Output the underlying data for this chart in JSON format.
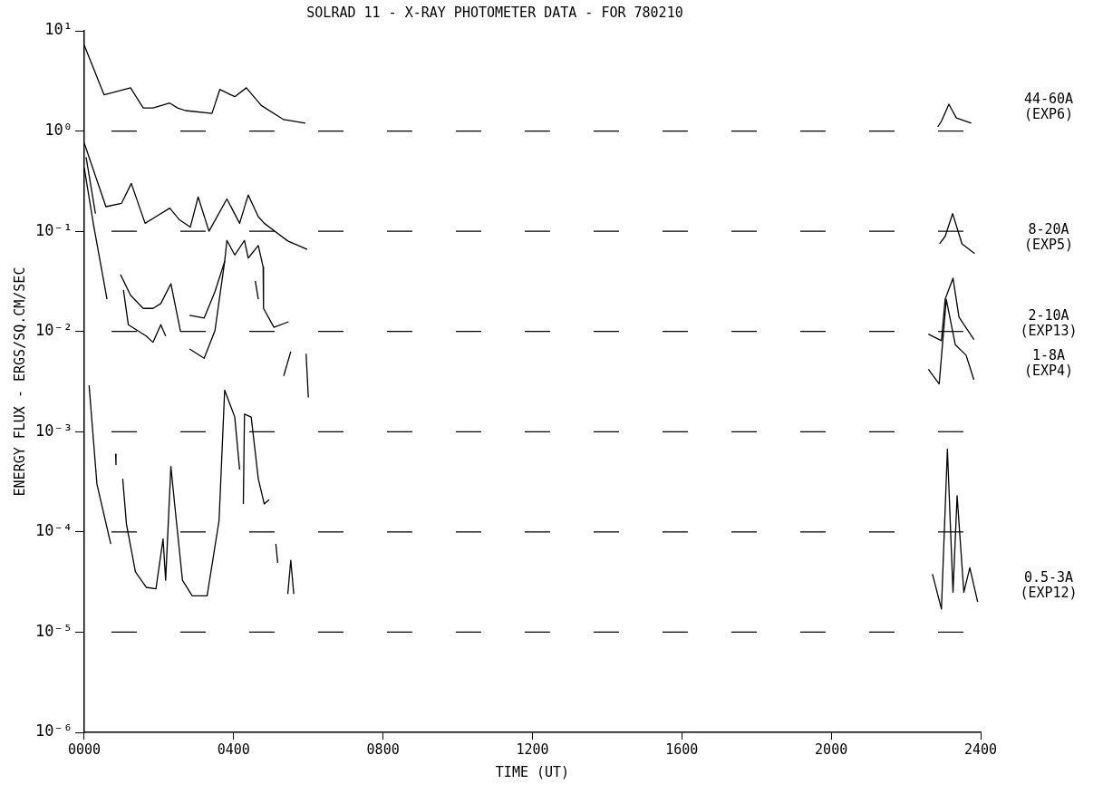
{
  "chart_data": {
    "type": "line",
    "title": "SOLRAD 11 - X-RAY PHOTOMETER DATA - FOR 780210",
    "xlabel": "TIME (UT)",
    "ylabel": "ENERGY FLUX - ERGS/SQ.CM/SEC",
    "log": "y",
    "xlim": [
      0,
      2400
    ],
    "xticks": [
      {
        "value": 0,
        "label": "0000"
      },
      {
        "value": 400,
        "label": "0400"
      },
      {
        "value": 800,
        "label": "0800"
      },
      {
        "value": 1200,
        "label": "1200"
      },
      {
        "value": 1600,
        "label": "1600"
      },
      {
        "value": 2000,
        "label": "2000"
      },
      {
        "value": 2400,
        "label": "2400"
      }
    ],
    "ylim": [
      1e-06,
      10
    ],
    "yticks": [
      {
        "value": 10,
        "label": "10¹"
      },
      {
        "value": 1,
        "label": "10⁰"
      },
      {
        "value": 0.1,
        "label": "10⁻¹"
      },
      {
        "value": 0.01,
        "label": "10⁻²"
      },
      {
        "value": 0.001,
        "label": "10⁻³"
      },
      {
        "value": 0.0001,
        "label": "10⁻⁴"
      },
      {
        "value": 1e-05,
        "label": "10⁻⁵"
      },
      {
        "value": 1e-06,
        "label": "10⁻⁶"
      }
    ],
    "ref_lines": [
      {
        "axis": "y",
        "value": 1,
        "line_style": "dashed"
      },
      {
        "axis": "y",
        "value": 0.1,
        "line_style": "dashed"
      },
      {
        "axis": "y",
        "value": 0.01,
        "line_style": "dashed"
      },
      {
        "axis": "y",
        "value": 0.001,
        "line_style": "dashed"
      },
      {
        "axis": "y",
        "value": 0.0001,
        "line_style": "dashed"
      },
      {
        "axis": "y",
        "value": 1e-05,
        "line_style": "dashed"
      }
    ],
    "legend": false,
    "series": [
      {
        "name": "44-60A (EXP6)",
        "color": "#000000",
        "x": [
          0,
          53,
          124,
          158,
          184,
          229,
          250,
          271,
          342,
          363,
          403,
          434,
          474,
          534,
          592,
          1400,
          2285,
          2295,
          2315,
          2335,
          2375
        ],
        "values": [
          7.2,
          2.3,
          2.7,
          1.7,
          1.7,
          1.9,
          1.7,
          1.6,
          1.5,
          2.6,
          2.2,
          2.7,
          1.8,
          1.3,
          1.2,
          null,
          1.1,
          1.25,
          1.85,
          1.35,
          1.2
        ]
      },
      {
        "name": "8-20A (EXP5)",
        "color": "#000000",
        "x": [
          0,
          58,
          100,
          126,
          163,
          192,
          229,
          255,
          284,
          305,
          334,
          382,
          416,
          439,
          466,
          482,
          545,
          597,
          1400,
          2290,
          2305,
          2325,
          2350,
          2384
        ],
        "values": [
          0.76,
          0.176,
          0.19,
          0.3,
          0.12,
          0.14,
          0.17,
          0.13,
          0.11,
          0.22,
          0.1,
          0.21,
          0.12,
          0.23,
          0.14,
          0.12,
          0.08,
          0.066,
          null,
          0.075,
          0.089,
          0.15,
          0.075,
          0.06
        ]
      },
      {
        "name": "2-10A (EXP13)",
        "color": "#000000",
        "x": [
          0,
          26,
          61,
          80,
          97,
          124,
          158,
          184,
          205,
          232,
          258,
          270,
          282,
          321,
          350,
          376,
          382,
          403,
          429,
          439,
          466,
          479,
          480,
          508,
          547,
          1400,
          2260,
          2295,
          2305,
          2326,
          2342,
          2382
        ],
        "values": [
          0.43,
          0.11,
          0.021,
          null,
          0.037,
          0.023,
          0.017,
          0.017,
          0.019,
          0.03,
          0.0099,
          null,
          0.0145,
          0.0136,
          0.025,
          0.05,
          0.081,
          0.058,
          0.081,
          0.054,
          0.072,
          0.044,
          0.017,
          0.011,
          0.0125,
          null,
          0.0094,
          0.0081,
          0.021,
          0.034,
          0.0139,
          0.0083
        ]
      },
      {
        "name": "1-8A (EXP4)",
        "color": "#000000",
        "x": [
          5,
          30,
          70,
          105,
          118,
          166,
          184,
          205,
          218,
          250,
          282,
          321,
          350,
          376,
          420,
          458,
          466,
          500,
          534,
          553,
          580,
          594,
          600,
          1400,
          2260,
          2289,
          2308,
          2332,
          2361,
          2382
        ],
        "values": [
          0.55,
          0.15,
          null,
          0.026,
          0.0117,
          0.009,
          0.0078,
          0.0117,
          0.009,
          null,
          0.0067,
          0.0054,
          0.0102,
          0.05,
          null,
          0.032,
          0.021,
          null,
          0.0036,
          0.0063,
          null,
          0.006,
          0.0022,
          null,
          0.0042,
          0.003,
          0.021,
          0.0074,
          0.0058,
          0.0033
        ]
      },
      {
        "name": "0.5-3A (EXP12)",
        "color": "#000000",
        "x": [
          13,
          34,
          71,
          78,
          84,
          85,
          95,
          103,
          113,
          137,
          166,
          192,
          211,
          218,
          232,
          242,
          263,
          289,
          329,
          361,
          376,
          403,
          416,
          420,
          426,
          429,
          447,
          466,
          482,
          495,
          505,
          513,
          518,
          530,
          545,
          553,
          561,
          1400,
          2271,
          2295,
          2311,
          2326,
          2337,
          2355,
          2371,
          2392
        ],
        "values": [
          0.0029,
          0.0003,
          7.6e-05,
          null,
          0.0006,
          0.00047,
          null,
          0.00034,
          0.00012,
          4e-05,
          2.8e-05,
          2.7e-05,
          8.5e-05,
          3.3e-05,
          0.00045,
          0.00019,
          3.3e-05,
          2.3e-05,
          2.3e-05,
          0.00013,
          0.0026,
          0.0014,
          0.00042,
          null,
          0.00019,
          0.0015,
          0.0014,
          0.00034,
          0.00019,
          0.00021,
          null,
          7.6e-05,
          4.9e-05,
          null,
          2.4e-05,
          5.2e-05,
          2.4e-05,
          null,
          3.8e-05,
          1.7e-05,
          0.00067,
          2.5e-05,
          0.00023,
          2.5e-05,
          4.4e-05,
          2e-05
        ]
      }
    ]
  }
}
